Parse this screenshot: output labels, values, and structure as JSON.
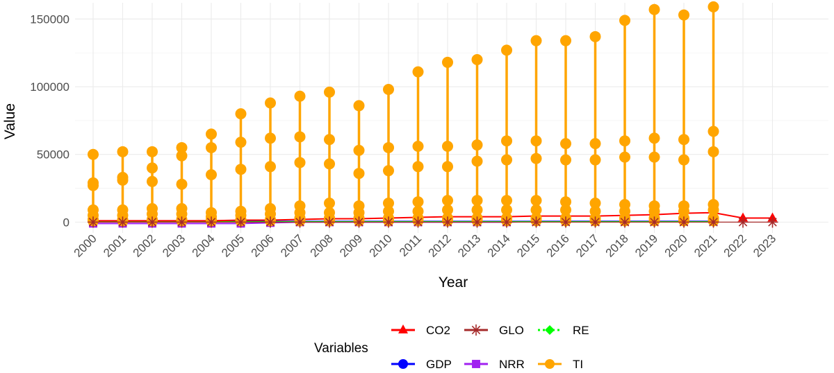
{
  "chart_data": {
    "type": "line",
    "title": "",
    "xlabel": "Year",
    "ylabel": "Value",
    "ylim": [
      -8000,
      162000
    ],
    "yticks": [
      0,
      50000,
      100000,
      150000
    ],
    "grid": true,
    "categories": [
      "2000",
      "2001",
      "2002",
      "2003",
      "2004",
      "2005",
      "2006",
      "2007",
      "2008",
      "2009",
      "2010",
      "2011",
      "2012",
      "2013",
      "2014",
      "2015",
      "2016",
      "2017",
      "2018",
      "2019",
      "2020",
      "2021",
      "2022",
      "2023"
    ],
    "legend": {
      "title": "Variables",
      "position": "bottom"
    },
    "series": [
      {
        "name": "CO2",
        "color": "#ff0000",
        "marker": "triangle",
        "values": [
          1000,
          1000,
          1000,
          1000,
          1000,
          1500,
          1500,
          2000,
          2500,
          2500,
          3000,
          3500,
          4000,
          4000,
          4000,
          4500,
          4500,
          4500,
          5000,
          5500,
          6500,
          7000,
          3000,
          3000
        ]
      },
      {
        "name": "GLO",
        "color": "#a52a2a",
        "marker": "asterisk",
        "values": [
          0,
          0,
          0,
          0,
          0,
          0,
          0,
          0,
          0,
          0,
          0,
          0,
          0,
          0,
          0,
          0,
          0,
          0,
          0,
          0,
          0,
          0,
          0,
          0
        ]
      },
      {
        "name": "RE",
        "color": "#00ff00",
        "marker": "diamond",
        "values": [
          200,
          200,
          200,
          200,
          200,
          200,
          200,
          200,
          200,
          200,
          200,
          200,
          200,
          200,
          200,
          200,
          200,
          200,
          200,
          200,
          200,
          200,
          null,
          null
        ]
      },
      {
        "name": "GDP",
        "color": "#0000ff",
        "marker": "circle",
        "values": [
          500,
          500,
          500,
          500,
          500,
          500,
          500,
          500,
          500,
          500,
          500,
          500,
          500,
          500,
          500,
          500,
          500,
          500,
          500,
          500,
          500,
          500,
          null,
          null
        ]
      },
      {
        "name": "NRR",
        "color": "#a020f0",
        "marker": "square",
        "values": [
          -1000,
          -1000,
          -1000,
          -1000,
          -1000,
          -1000,
          -500,
          0,
          0,
          0,
          0,
          0,
          0,
          0,
          0,
          500,
          500,
          500,
          500,
          500,
          500,
          500,
          null,
          null
        ]
      },
      {
        "name": "TI",
        "color": "#ffa500",
        "marker": "circle",
        "groups": [
          [
            50000,
            29000,
            27000,
            9000,
            5000,
            2000,
            1000
          ],
          [
            52000,
            33000,
            31000,
            9000,
            5000,
            2000,
            1000
          ],
          [
            52000,
            40000,
            30000,
            10000,
            6000,
            2000,
            1000
          ],
          [
            55000,
            49000,
            28000,
            10000,
            6000,
            2000,
            1000
          ],
          [
            65000,
            55000,
            35000,
            7000,
            4000,
            2000,
            1000
          ],
          [
            80000,
            59000,
            39000,
            8000,
            5000,
            2000,
            1000
          ],
          [
            88000,
            62000,
            41000,
            10000,
            6000,
            2000,
            1000
          ],
          [
            93000,
            63000,
            44000,
            12000,
            7000,
            3000,
            1000
          ],
          [
            96000,
            61000,
            43000,
            14000,
            7000,
            3000,
            1000
          ],
          [
            86000,
            53000,
            36000,
            12000,
            7000,
            3000,
            1000
          ],
          [
            98000,
            55000,
            38000,
            14000,
            8000,
            3000,
            1000
          ],
          [
            111000,
            56000,
            41000,
            15000,
            8000,
            3000,
            1000
          ],
          [
            118000,
            56000,
            41000,
            16000,
            9000,
            3000,
            1000
          ],
          [
            120000,
            57000,
            45000,
            16000,
            9000,
            3000,
            1000
          ],
          [
            127000,
            60000,
            46000,
            16000,
            9000,
            3000,
            1000
          ],
          [
            134000,
            60000,
            47000,
            16000,
            9000,
            3000,
            1000
          ],
          [
            134000,
            58000,
            46000,
            15000,
            9000,
            3000,
            1000
          ],
          [
            137000,
            58000,
            46000,
            14000,
            8000,
            3000,
            1000
          ],
          [
            149000,
            60000,
            48000,
            13000,
            8000,
            3000,
            1000
          ],
          [
            157000,
            62000,
            48000,
            12000,
            8000,
            3000,
            1000
          ],
          [
            153000,
            61000,
            46000,
            12000,
            8000,
            3000,
            1000
          ],
          [
            159000,
            67000,
            52000,
            13000,
            9000,
            3000,
            1000
          ],
          [],
          []
        ]
      }
    ]
  }
}
